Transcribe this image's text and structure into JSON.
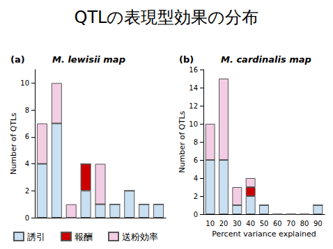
{
  "title": "QTLの表現型効果の分布",
  "chart_data": [
    {
      "type": "bar",
      "annotations": [
        "(a)"
      ],
      "title": "M. lewisii map",
      "categories": [
        null,
        null,
        null,
        null,
        null,
        null,
        null,
        null,
        null
      ],
      "series": [
        {
          "name": "誘引",
          "color": "#c9dff2",
          "values": [
            4,
            7,
            0,
            2,
            1,
            1,
            2,
            1,
            1
          ]
        },
        {
          "name": "報酬",
          "color": "#cc0000",
          "values": [
            0,
            0,
            0,
            2,
            0,
            0,
            0,
            0,
            0
          ]
        },
        {
          "name": "送粉効率",
          "color": "#f2cde3",
          "values": [
            3,
            3,
            1,
            0,
            3,
            0,
            0,
            0,
            0
          ]
        }
      ],
      "y_label": "Number of QTLs",
      "ylim": [
        0,
        11
      ],
      "yticks": [
        0,
        2,
        4,
        6,
        8,
        10
      ],
      "stacked": true,
      "grid": false,
      "tick_labels": "y",
      "legend": "bottom-left"
    },
    {
      "type": "bar",
      "annotations": [
        "(b)"
      ],
      "title": "M. cardinalis map",
      "categories": [
        "10",
        "20",
        "30",
        "40",
        "50",
        "60",
        "70",
        "80",
        "90"
      ],
      "series": [
        {
          "name": "誘引",
          "color": "#c9dff2",
          "values": [
            6,
            6,
            1,
            2,
            1,
            0,
            0,
            0,
            1
          ]
        },
        {
          "name": "報酬",
          "color": "#cc0000",
          "values": [
            0,
            0,
            0,
            1,
            0,
            0,
            0,
            0,
            0
          ]
        },
        {
          "name": "送粉効率",
          "color": "#f2cde3",
          "values": [
            4,
            9,
            2,
            1,
            0,
            0,
            0,
            0,
            0
          ]
        }
      ],
      "x_label": "Percent variance explained",
      "y_label": "Number of QTLs",
      "ylim": [
        0,
        16
      ],
      "yticks": [
        0,
        2,
        4,
        6,
        8,
        10,
        12,
        14,
        16
      ],
      "stacked": true,
      "grid": false
    }
  ]
}
